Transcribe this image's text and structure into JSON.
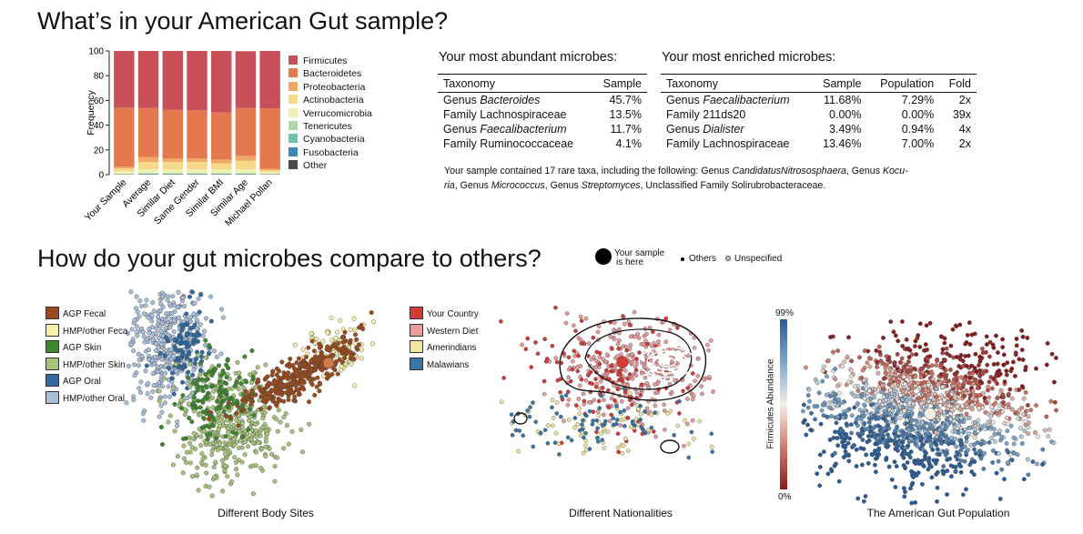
{
  "page_title": "What’s in your American Gut sample?",
  "compare_title": "How do your gut microbes compare to others?",
  "phyla_legend": [
    {
      "label": "Firmicutes",
      "color": "#c8505a"
    },
    {
      "label": "Bacteroidetes",
      "color": "#e4784e"
    },
    {
      "label": "Proteobacteria",
      "color": "#f0a866"
    },
    {
      "label": "Actinobacteria",
      "color": "#f7d98a"
    },
    {
      "label": "Verrucomicrobia",
      "color": "#edf2b4"
    },
    {
      "label": "Tenericutes",
      "color": "#acd8a7"
    },
    {
      "label": "Cyanobacteria",
      "color": "#6cc3a6"
    },
    {
      "label": "Fusobacteria",
      "color": "#3a87b8"
    },
    {
      "label": "Other",
      "color": "#4a4a4a"
    }
  ],
  "chart_data": [
    {
      "type": "bar",
      "stacked": true,
      "ylabel": "Frequency",
      "ylim": [
        0,
        100
      ],
      "yticks": [
        "0",
        "20",
        "40",
        "60",
        "80",
        "100"
      ],
      "categories": [
        "Your Sample",
        "Average",
        "Similar Diet",
        "Same Gender",
        "Similar BMI",
        "Similar Age",
        "Michael Pollan"
      ],
      "series": [
        {
          "name": "Other",
          "values": [
            0.3,
            0.3,
            0.3,
            0.3,
            0.3,
            0.3,
            0.3
          ]
        },
        {
          "name": "Fusobacteria",
          "values": [
            0,
            0.2,
            0.2,
            0.2,
            0.2,
            0.2,
            0
          ]
        },
        {
          "name": "Cyanobacteria",
          "values": [
            0,
            0.2,
            0.2,
            0.2,
            0.2,
            0.2,
            0
          ]
        },
        {
          "name": "Tenericutes",
          "values": [
            0.3,
            0.5,
            0.5,
            0.5,
            0.5,
            0.5,
            0.3
          ]
        },
        {
          "name": "Verrucomicrobia",
          "values": [
            2,
            3,
            3,
            3,
            3,
            3,
            1.5
          ]
        },
        {
          "name": "Actinobacteria",
          "values": [
            2.5,
            6,
            6,
            6,
            5,
            7,
            1.5
          ]
        },
        {
          "name": "Proteobacteria",
          "values": [
            1.5,
            4,
            3,
            3,
            3,
            4,
            1
          ]
        },
        {
          "name": "Bacteroidetes",
          "values": [
            47.6,
            39.6,
            39.3,
            39,
            38,
            38.6,
            49
          ]
        },
        {
          "name": "Firmicutes",
          "values": [
            45.8,
            46.2,
            47.5,
            47.8,
            49.8,
            46,
            46.4
          ]
        }
      ]
    },
    {
      "type": "scatter",
      "caption": "Different Body Sites",
      "legend": [
        {
          "label": "AGP Fecal",
          "color": "#9c4a1c"
        },
        {
          "label": "HMP/other Feca",
          "color": "#f6f0a8"
        },
        {
          "label": "AGP Skin",
          "color": "#3d8a2d"
        },
        {
          "label": "HMP/other Skin",
          "color": "#a7c47a"
        },
        {
          "label": "AGP Oral",
          "color": "#2f6aa3"
        },
        {
          "label": "HMP/other Oral",
          "color": "#a9bfd9"
        }
      ]
    },
    {
      "type": "scatter",
      "caption": "Different Nationalities",
      "legend": [
        {
          "label": "Your Country",
          "color": "#d43a36"
        },
        {
          "label": "Western Diet",
          "color": "#ea9b9b"
        },
        {
          "label": "Amerindians",
          "color": "#f3e7a0"
        },
        {
          "label": "Malawians",
          "color": "#3776a8"
        }
      ]
    },
    {
      "type": "scatter",
      "caption": "The American Gut Population",
      "colorbar_label": "Firmicutes Abundance",
      "colorbar_top": "99%",
      "colorbar_bottom": "0%"
    }
  ],
  "scatter_legend": {
    "you_label_1": "Your sample",
    "you_label_2": "is here",
    "others_label": "Others",
    "unspecified_label": "Unspecified"
  },
  "abundant": {
    "title": "Your most abundant microbes:",
    "headers": [
      "Taxonomy",
      "Sample"
    ],
    "rows": [
      {
        "rank": "Genus",
        "name": "Bacteroides",
        "italic": true,
        "sample": "45.7%"
      },
      {
        "rank": "Family",
        "name": "Lachnospiraceae",
        "italic": false,
        "sample": "13.5%"
      },
      {
        "rank": "Genus",
        "name": "Faecalibacterium",
        "italic": true,
        "sample": "11.7%"
      },
      {
        "rank": "Family",
        "name": "Ruminococcaceae",
        "italic": false,
        "sample": "4.1%"
      }
    ]
  },
  "enriched": {
    "title": "Your most enriched microbes:",
    "headers": [
      "Taxonomy",
      "Sample",
      "Population",
      "Fold"
    ],
    "rows": [
      {
        "rank": "Genus",
        "name": "Faecalibacterium",
        "italic": true,
        "sample": "11.68%",
        "population": "7.29%",
        "fold": "2x"
      },
      {
        "rank": "Family",
        "name": "211ds20",
        "italic": false,
        "sample": "0.00%",
        "population": "0.00%",
        "fold": "39x"
      },
      {
        "rank": "Genus",
        "name": "Dialister",
        "italic": true,
        "sample": "3.49%",
        "population": "0.94%",
        "fold": "4x"
      },
      {
        "rank": "Family",
        "name": "Lachnospiraceae",
        "italic": false,
        "sample": "13.46%",
        "population": "7.00%",
        "fold": "2x"
      }
    ]
  },
  "rare_note": {
    "prefix": "Your sample contained 17 rare taxa, including the following: Genus ",
    "taxa_1": "CandidatusNitrososphaera",
    "mid_1": ", Genus ",
    "taxa_2a": "Kocu-",
    "taxa_2b": "ria",
    "mid_2": ", Genus ",
    "taxa_3": "Micrococcus",
    "mid_3": ", Genus ",
    "taxa_4": "Streptomyces",
    "suffix": ", Unclassified Family Solirubrobacteraceae."
  }
}
